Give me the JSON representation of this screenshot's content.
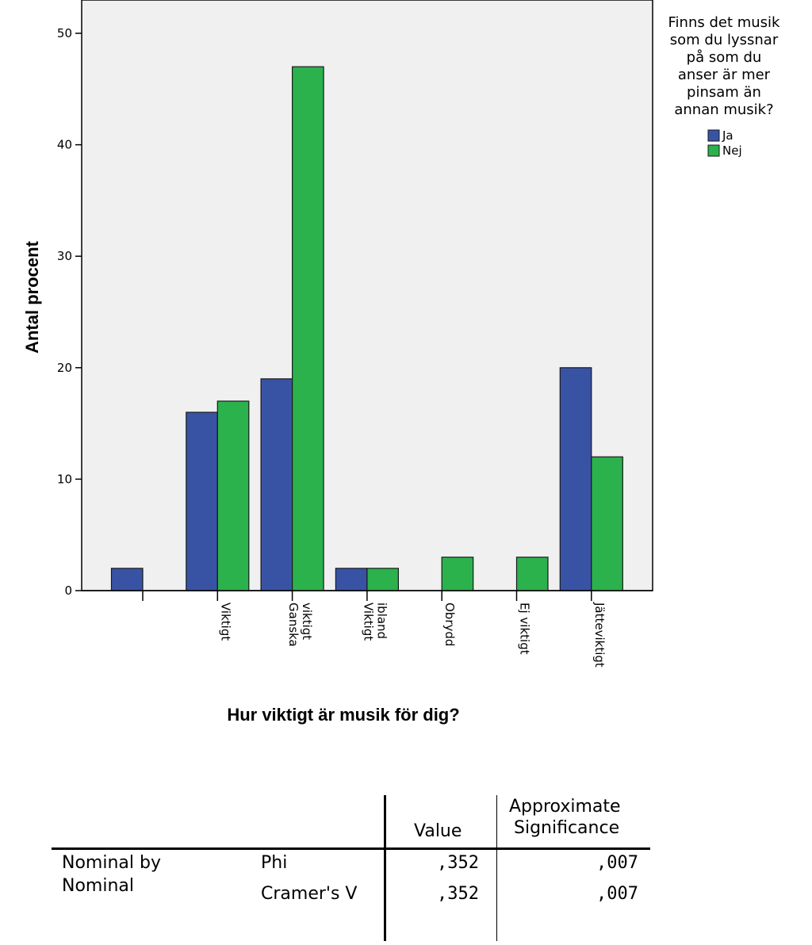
{
  "chart_data": {
    "type": "bar",
    "title": "",
    "xlabel": "Hur viktigt är musik för dig?",
    "ylabel": "Antal procent",
    "ylim": [
      0,
      52
    ],
    "yticks": [
      0,
      10,
      20,
      30,
      40,
      50
    ],
    "categories": [
      "",
      "Viktigt",
      "Ganska viktigt",
      "Viktigt ibland",
      "Obrydd",
      "Ej viktigt",
      "Jätteviktigt"
    ],
    "category_label_lines": [
      [],
      [
        "Viktigt"
      ],
      [
        "Ganska",
        "viktigt"
      ],
      [
        "Viktigt",
        "ibland"
      ],
      [
        "Obrydd"
      ],
      [
        "Ej viktigt"
      ],
      [
        "Jätteviktigt"
      ]
    ],
    "series": [
      {
        "name": "Ja",
        "color": "#3953a4",
        "values": [
          2,
          16,
          19,
          2,
          0,
          0,
          20
        ]
      },
      {
        "name": "Nej",
        "color": "#2bb24c",
        "values": [
          0,
          17,
          47,
          2,
          3,
          3,
          12
        ]
      }
    ],
    "legend": {
      "title_lines": [
        "Finns det musik",
        "som du lyssnar",
        "på som du",
        "anser är mer",
        "pinsam än",
        "annan musik?"
      ],
      "placement": "right"
    },
    "grid": false
  },
  "stats_table": {
    "headers": {
      "value": "Value",
      "sig_line1": "Approximate",
      "sig_line2": "Significance"
    },
    "row_group": [
      "Nominal by",
      "Nominal"
    ],
    "rows": [
      {
        "label": "Phi",
        "value": ",352",
        "sig": ",007"
      },
      {
        "label": "Cramer's V",
        "value": ",352",
        "sig": ",007"
      }
    ]
  }
}
